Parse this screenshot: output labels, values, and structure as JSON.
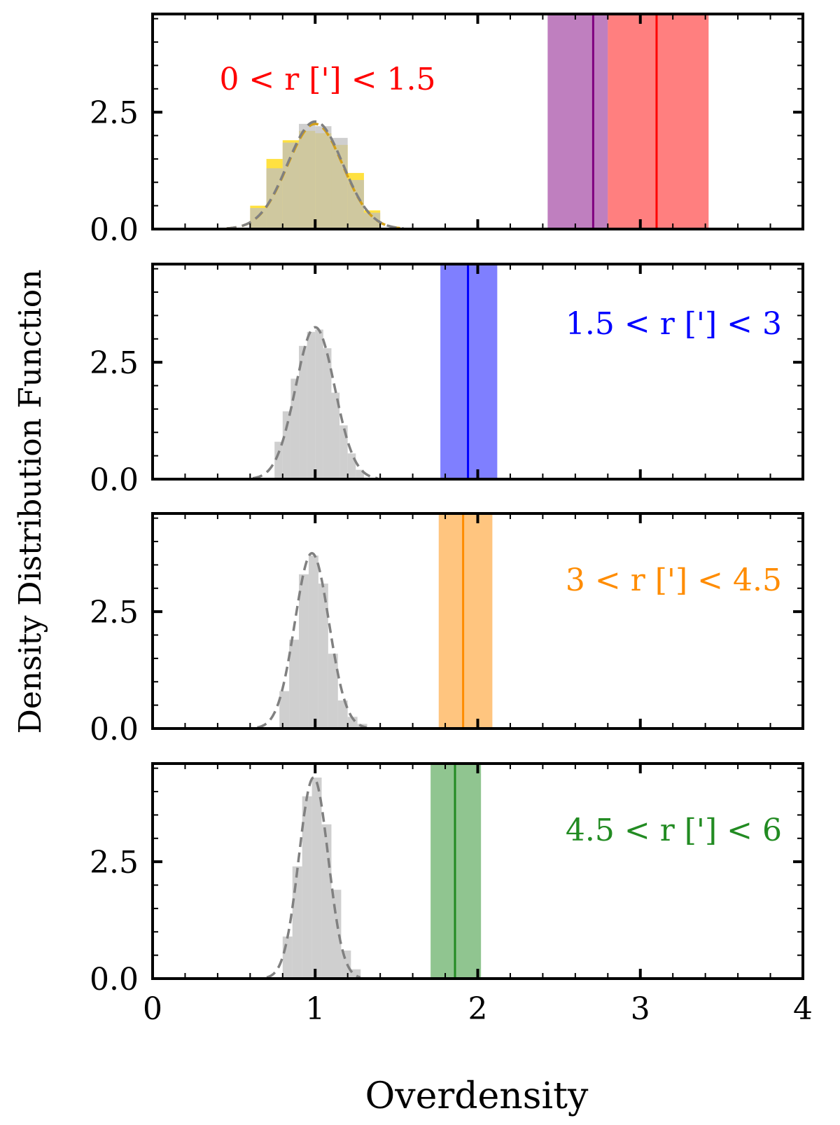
{
  "figure": {
    "ylabel": "Density Distribution Function",
    "xlabel": "Overdensity",
    "x_ticks": [
      0,
      1,
      2,
      3,
      4
    ],
    "y_ticks": [
      0.0,
      2.5
    ],
    "y_tick_labels": [
      "0.0",
      "2.5"
    ]
  },
  "chart_data": [
    {
      "type": "bar",
      "panel": 1,
      "annotation": "0 < r ['] < 1.5",
      "annotation_color": "#ff0000",
      "legend_position": "top-left",
      "xlim": [
        0,
        4
      ],
      "ylim": [
        0,
        4.6
      ],
      "histograms": [
        {
          "name": "",
          "color": "#ffd700",
          "bin_edges": [
            0.6,
            0.7,
            0.8,
            0.9,
            1.0,
            1.1,
            1.2,
            1.3,
            1.4
          ],
          "values": [
            0.5,
            1.5,
            1.9,
            2.1,
            2.05,
            1.8,
            1.2,
            0.4
          ]
        },
        {
          "name": "",
          "color": "#bfbfbf",
          "bin_edges": [
            0.6,
            0.7,
            0.8,
            0.9,
            1.0,
            1.1,
            1.2,
            1.3,
            1.4
          ],
          "values": [
            0.45,
            1.3,
            1.85,
            2.25,
            2.2,
            1.95,
            1.05,
            0.35
          ]
        }
      ],
      "curves": [
        {
          "name": "",
          "color": "#d4a017",
          "style": "dashed",
          "mean": 1.0,
          "sigma": 0.17,
          "peak": 2.25
        },
        {
          "name": "",
          "color": "#808080",
          "style": "dashed",
          "mean": 1.0,
          "sigma": 0.17,
          "peak": 2.3
        }
      ],
      "bands": [
        {
          "color": "#800080",
          "lo": 2.43,
          "hi": 2.8,
          "center": 2.71
        },
        {
          "color": "#ff0000",
          "lo": 2.8,
          "hi": 3.42,
          "center": 3.1
        }
      ]
    },
    {
      "type": "bar",
      "panel": 2,
      "annotation": "1.5 < r ['] < 3",
      "annotation_color": "#0000ff",
      "legend_position": "top-right",
      "xlim": [
        0,
        4
      ],
      "ylim": [
        0,
        4.6
      ],
      "histograms": [
        {
          "name": "",
          "color": "#bfbfbf",
          "bin_edges": [
            0.75,
            0.8,
            0.85,
            0.9,
            0.95,
            1.0,
            1.05,
            1.1,
            1.15,
            1.2,
            1.25,
            1.3
          ],
          "values": [
            0.8,
            1.45,
            2.15,
            2.85,
            3.15,
            3.2,
            2.8,
            1.85,
            1.15,
            0.55,
            0.2
          ]
        }
      ],
      "curves": [
        {
          "name": "",
          "color": "#808080",
          "style": "dashed",
          "mean": 1.0,
          "sigma": 0.12,
          "peak": 3.25
        }
      ],
      "bands": [
        {
          "color": "#0000ff",
          "lo": 1.77,
          "hi": 2.12,
          "center": 1.94
        }
      ]
    },
    {
      "type": "bar",
      "panel": 3,
      "annotation": "3 < r ['] < 4.5",
      "annotation_color": "#ff8c00",
      "legend_position": "center-right",
      "xlim": [
        0,
        4
      ],
      "ylim": [
        0,
        4.6
      ],
      "histograms": [
        {
          "name": "",
          "color": "#bfbfbf",
          "bin_edges": [
            0.78,
            0.84,
            0.9,
            0.96,
            1.02,
            1.08,
            1.14,
            1.2,
            1.26,
            1.32
          ],
          "values": [
            0.8,
            1.9,
            3.3,
            3.7,
            3.1,
            1.6,
            0.6,
            0.25,
            0.1
          ]
        }
      ],
      "curves": [
        {
          "name": "",
          "color": "#808080",
          "style": "dashed",
          "mean": 0.98,
          "sigma": 0.105,
          "peak": 3.75
        }
      ],
      "bands": [
        {
          "color": "#ff8c00",
          "lo": 1.76,
          "hi": 2.09,
          "center": 1.91
        }
      ]
    },
    {
      "type": "bar",
      "panel": 4,
      "annotation": "4.5 < r ['] < 6",
      "annotation_color": "#228b22",
      "legend_position": "center-right",
      "xlim": [
        0,
        4
      ],
      "ylim": [
        0,
        4.6
      ],
      "histograms": [
        {
          "name": "",
          "color": "#bfbfbf",
          "bin_edges": [
            0.8,
            0.86,
            0.92,
            0.98,
            1.04,
            1.1,
            1.16,
            1.22,
            1.28
          ],
          "values": [
            0.9,
            2.4,
            3.9,
            4.3,
            3.3,
            1.9,
            0.6,
            0.2
          ]
        }
      ],
      "curves": [
        {
          "name": "",
          "color": "#808080",
          "style": "dashed",
          "mean": 0.99,
          "sigma": 0.09,
          "peak": 4.3
        }
      ],
      "bands": [
        {
          "color": "#228b22",
          "lo": 1.71,
          "hi": 2.02,
          "center": 1.86
        }
      ]
    }
  ]
}
